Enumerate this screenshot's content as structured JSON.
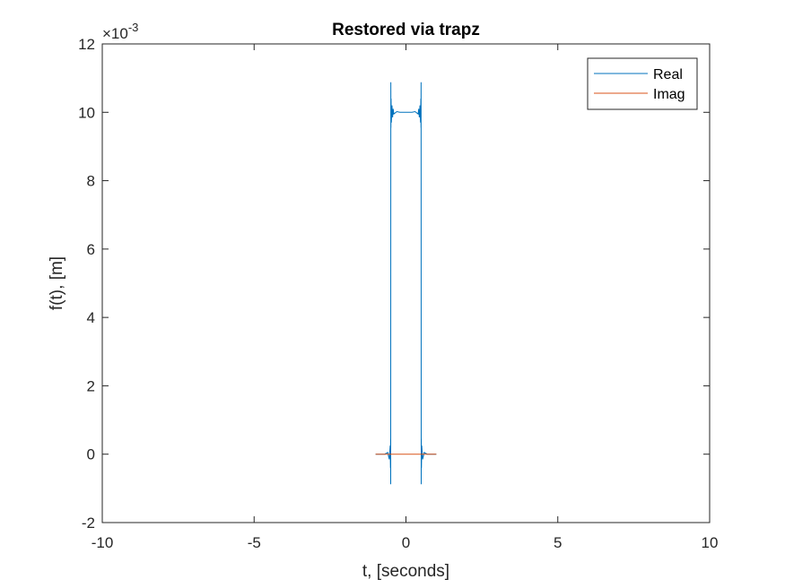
{
  "chart_data": {
    "type": "line",
    "title": "Restored via trapz",
    "xlabel": "t, [seconds]",
    "ylabel": "f(t), [m]",
    "y_exponent_label": "×10",
    "y_exponent_power": "-3",
    "xlim": [
      -10,
      10
    ],
    "ylim": [
      -2,
      12
    ],
    "y_scale_factor": 0.001,
    "x_ticks": [
      -10,
      -5,
      0,
      5,
      10
    ],
    "x_tick_labels": [
      "-10",
      "-5",
      "0",
      "5",
      "10"
    ],
    "y_ticks": [
      -2,
      0,
      2,
      4,
      6,
      8,
      10,
      12
    ],
    "y_tick_labels": [
      "-2",
      "0",
      "2",
      "4",
      "6",
      "8",
      "10",
      "12"
    ],
    "grid": false,
    "legend_position": "top-right",
    "series": [
      {
        "name": "Real",
        "color": "#0072BD",
        "x": [
          -1.0,
          -0.7,
          -0.6,
          -0.55,
          -0.52,
          -0.51,
          -0.505,
          -0.502,
          -0.5,
          -0.498,
          -0.495,
          -0.49,
          -0.48,
          -0.46,
          -0.44,
          -0.42,
          -0.4,
          -0.3,
          -0.2,
          0,
          0.2,
          0.3,
          0.4,
          0.42,
          0.44,
          0.46,
          0.48,
          0.49,
          0.495,
          0.498,
          0.5,
          0.502,
          0.505,
          0.51,
          0.52,
          0.55,
          0.6,
          0.7,
          1.0
        ],
        "y": [
          0,
          0,
          0.05,
          -0.15,
          0.25,
          -0.4,
          0.45,
          -0.88,
          5.0,
          10.88,
          9.55,
          10.4,
          9.7,
          10.2,
          9.85,
          10.1,
          9.95,
          10.02,
          10.0,
          10.0,
          10.0,
          10.02,
          9.95,
          10.1,
          9.85,
          10.2,
          9.7,
          10.4,
          9.55,
          10.88,
          5.0,
          -0.88,
          0.45,
          -0.4,
          0.25,
          -0.15,
          0.05,
          0,
          0
        ]
      },
      {
        "name": "Imag",
        "color": "#D95319",
        "x": [
          -1.0,
          1.0
        ],
        "y": [
          0,
          0
        ]
      }
    ]
  }
}
